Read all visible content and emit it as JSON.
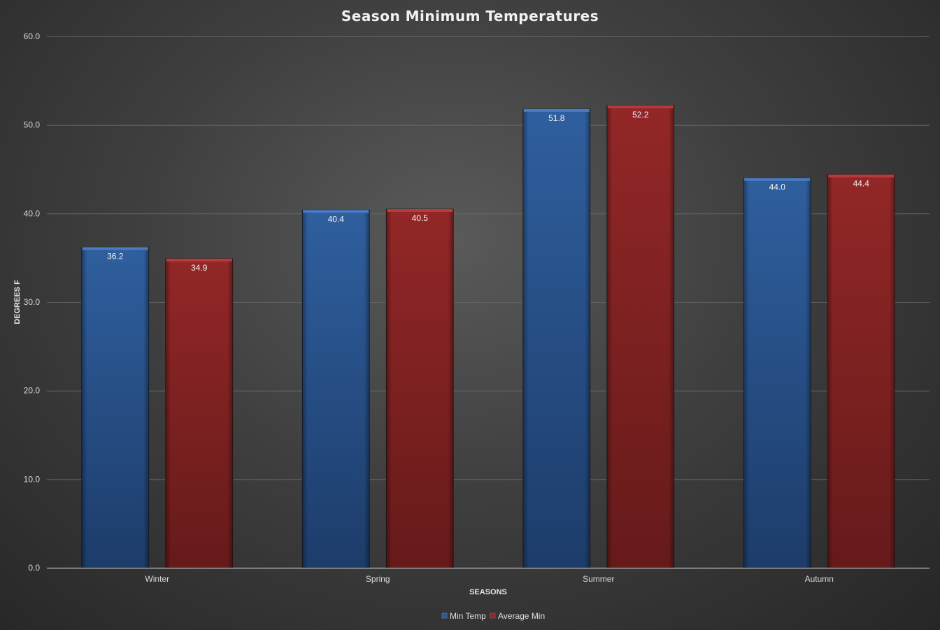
{
  "chart_data": {
    "type": "bar",
    "title": "Season Minimum Temperatures",
    "xlabel": "SEASONS",
    "ylabel": "DEGREES F",
    "categories": [
      "Winter",
      "Spring",
      "Summer",
      "Autumn"
    ],
    "series": [
      {
        "name": "Min Temp",
        "values": [
          36.2,
          40.4,
          51.8,
          44.0
        ],
        "color": "#2b5797"
      },
      {
        "name": "Average Min",
        "values": [
          34.9,
          40.5,
          52.2,
          44.4
        ],
        "color": "#8f2424"
      }
    ],
    "ylim": [
      0,
      60
    ],
    "yticks": [
      0,
      10,
      20,
      30,
      40,
      50,
      60
    ],
    "ytick_labels": [
      "0.0",
      "10.0",
      "20.0",
      "30.0",
      "40.0",
      "50.0",
      "60.0"
    ],
    "data_labels": [
      [
        "36.2",
        "40.4",
        "51.8",
        "44.0"
      ],
      [
        "34.9",
        "40.5",
        "52.2",
        "44.4"
      ]
    ],
    "grid": true,
    "legend_position": "bottom"
  }
}
